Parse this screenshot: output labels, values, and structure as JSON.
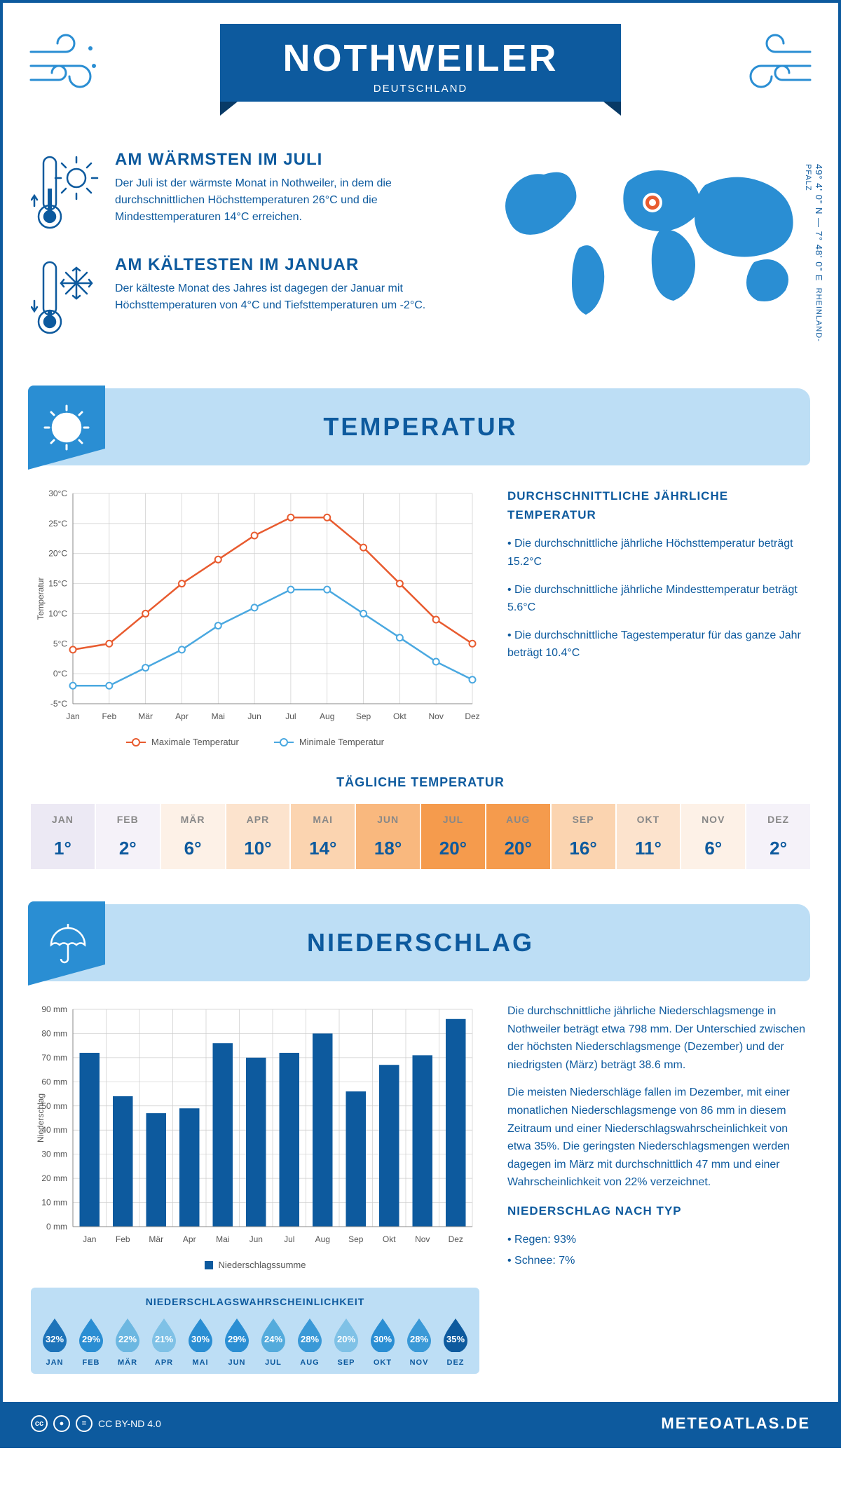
{
  "header": {
    "city": "NOTHWEILER",
    "country": "DEUTSCHLAND"
  },
  "coords": {
    "text": "49° 4' 0\" N — 7° 48' 0\" E",
    "region": "RHEINLAND-PFALZ"
  },
  "summary": {
    "warm": {
      "title": "AM WÄRMSTEN IM JULI",
      "text": "Der Juli ist der wärmste Monat in Nothweiler, in dem die durchschnittlichen Höchsttemperaturen 26°C und die Mindesttemperaturen 14°C erreichen."
    },
    "cold": {
      "title": "AM KÄLTESTEN IM JANUAR",
      "text": "Der kälteste Monat des Jahres ist dagegen der Januar mit Höchsttemperaturen von 4°C und Tiefsttemperaturen um -2°C."
    }
  },
  "temp_section": {
    "title": "TEMPERATUR",
    "chart": {
      "months_short": [
        "Jan",
        "Feb",
        "Mär",
        "Apr",
        "Mai",
        "Jun",
        "Jul",
        "Aug",
        "Sep",
        "Okt",
        "Nov",
        "Dez"
      ],
      "max_label": "Maximale Temperatur",
      "min_label": "Minimale Temperatur",
      "y_ticks": [
        -5,
        0,
        5,
        10,
        15,
        20,
        25,
        30
      ],
      "y_tick_labels": [
        "-5°C",
        "0°C",
        "5°C",
        "10°C",
        "15°C",
        "20°C",
        "25°C",
        "30°C"
      ],
      "y_title": "Temperatur",
      "max_values": [
        4,
        5,
        10,
        15,
        19,
        23,
        26,
        26,
        21,
        15,
        9,
        5
      ],
      "min_values": [
        -2,
        -2,
        1,
        4,
        8,
        11,
        14,
        14,
        10,
        6,
        2,
        -1
      ],
      "max_color": "#e85b2f",
      "min_color": "#4aa8e0",
      "grid_color": "#cccccc",
      "bg": "#ffffff"
    },
    "side": {
      "heading": "DURCHSCHNITTLICHE JÄHRLICHE TEMPERATUR",
      "bullet1": "• Die durchschnittliche jährliche Höchsttemperatur beträgt 15.2°C",
      "bullet2": "• Die durchschnittliche jährliche Mindesttemperatur beträgt 5.6°C",
      "bullet3": "• Die durchschnittliche Tagestemperatur für das ganze Jahr beträgt 10.4°C"
    },
    "daily": {
      "title": "TÄGLICHE TEMPERATUR",
      "months": [
        "JAN",
        "FEB",
        "MÄR",
        "APR",
        "MAI",
        "JUN",
        "JUL",
        "AUG",
        "SEP",
        "OKT",
        "NOV",
        "DEZ"
      ],
      "values": [
        "1°",
        "2°",
        "6°",
        "10°",
        "14°",
        "18°",
        "20°",
        "20°",
        "16°",
        "11°",
        "6°",
        "2°"
      ],
      "colors": [
        "#ece9f4",
        "#f5f2f9",
        "#fdf1e7",
        "#fce3cd",
        "#fbd4b0",
        "#f9b87e",
        "#f59b4d",
        "#f59b4d",
        "#fbd4b0",
        "#fce3cd",
        "#fdf1e7",
        "#f5f2f9"
      ]
    }
  },
  "precip_section": {
    "title": "NIEDERSCHLAG",
    "chart": {
      "months_short": [
        "Jan",
        "Feb",
        "Mär",
        "Apr",
        "Mai",
        "Jun",
        "Jul",
        "Aug",
        "Sep",
        "Okt",
        "Nov",
        "Dez"
      ],
      "y_ticks": [
        0,
        10,
        20,
        30,
        40,
        50,
        60,
        70,
        80,
        90
      ],
      "y_tick_labels": [
        "0 mm",
        "10 mm",
        "20 mm",
        "30 mm",
        "40 mm",
        "50 mm",
        "60 mm",
        "70 mm",
        "80 mm",
        "90 mm"
      ],
      "y_title": "Niederschlag",
      "values": [
        72,
        54,
        47,
        49,
        76,
        70,
        72,
        80,
        56,
        67,
        71,
        86
      ],
      "bar_color": "#0d5a9e",
      "legend": "Niederschlagssumme"
    },
    "prob": {
      "heading": "NIEDERSCHLAGSWAHRSCHEINLICHKEIT",
      "months": [
        "JAN",
        "FEB",
        "MÄR",
        "APR",
        "MAI",
        "JUN",
        "JUL",
        "AUG",
        "SEP",
        "OKT",
        "NOV",
        "DEZ"
      ],
      "values": [
        "32%",
        "29%",
        "22%",
        "21%",
        "30%",
        "29%",
        "24%",
        "28%",
        "20%",
        "30%",
        "28%",
        "35%"
      ],
      "colors": [
        "#1d73b9",
        "#2a8ed3",
        "#6cb7e1",
        "#7fc1e6",
        "#2a8ed3",
        "#2a8ed3",
        "#54abdc",
        "#3a99d7",
        "#7fc1e6",
        "#2a8ed3",
        "#3a99d7",
        "#0d5a9e"
      ]
    },
    "side": {
      "p1": "Die durchschnittliche jährliche Niederschlagsmenge in Nothweiler beträgt etwa 798 mm. Der Unterschied zwischen der höchsten Niederschlagsmenge (Dezember) und der niedrigsten (März) beträgt 38.6 mm.",
      "p2": "Die meisten Niederschläge fallen im Dezember, mit einer monatlichen Niederschlagsmenge von 86 mm in diesem Zeitraum und einer Niederschlagswahrscheinlichkeit von etwa 35%. Die geringsten Niederschlagsmengen werden dagegen im März mit durchschnittlich 47 mm und einer Wahrscheinlichkeit von 22% verzeichnet.",
      "type_heading": "NIEDERSCHLAG NACH TYP",
      "type1": "• Regen: 93%",
      "type2": "• Schnee: 7%"
    }
  },
  "footer": {
    "license": "CC BY-ND 4.0",
    "brand": "METEOATLAS.DE"
  }
}
